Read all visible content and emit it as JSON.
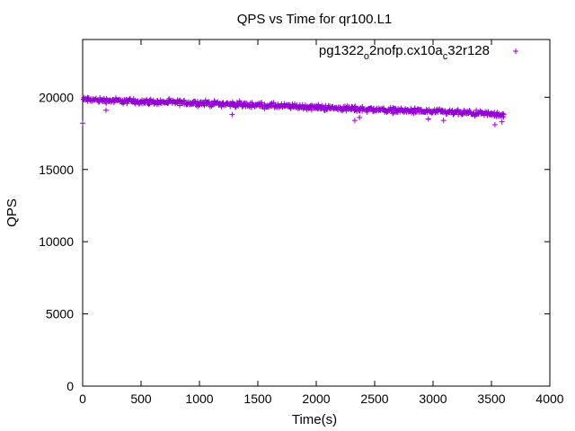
{
  "chart_data": {
    "type": "scatter",
    "title": "QPS vs Time for qr100.L1",
    "xlabel": "Time(s)",
    "ylabel": "QPS",
    "xlim": [
      0,
      4000
    ],
    "ylim": [
      0,
      24000
    ],
    "xticks": [
      0,
      500,
      1000,
      1500,
      2000,
      2500,
      3000,
      3500,
      4000
    ],
    "yticks": [
      0,
      5000,
      10000,
      15000,
      20000
    ],
    "grid": false,
    "legend_position": "top-right",
    "marker": "+",
    "series": [
      {
        "name": "pg1322_o2nofp.cx10a_c32r128",
        "color": "#9400d3",
        "x_range": [
          0,
          3600
        ],
        "trend": [
          {
            "x": 0,
            "y": 19850
          },
          {
            "x": 500,
            "y": 19700
          },
          {
            "x": 1000,
            "y": 19600
          },
          {
            "x": 1500,
            "y": 19450
          },
          {
            "x": 2000,
            "y": 19300
          },
          {
            "x": 2500,
            "y": 19150
          },
          {
            "x": 3000,
            "y": 19000
          },
          {
            "x": 3600,
            "y": 18800
          }
        ],
        "spread": 250,
        "outliers": [
          {
            "x": 0,
            "y": 18200
          },
          {
            "x": 200,
            "y": 19100
          },
          {
            "x": 1280,
            "y": 18800
          },
          {
            "x": 2330,
            "y": 18400
          },
          {
            "x": 2370,
            "y": 18600
          },
          {
            "x": 2960,
            "y": 18500
          },
          {
            "x": 3090,
            "y": 18400
          },
          {
            "x": 3530,
            "y": 18100
          },
          {
            "x": 3590,
            "y": 18300
          }
        ]
      }
    ]
  },
  "legend": {
    "label_main": "pg1322",
    "label_sub1": "o",
    "label_mid": "2nofp.cx10a",
    "label_sub2": "c",
    "label_end": "32r128"
  }
}
